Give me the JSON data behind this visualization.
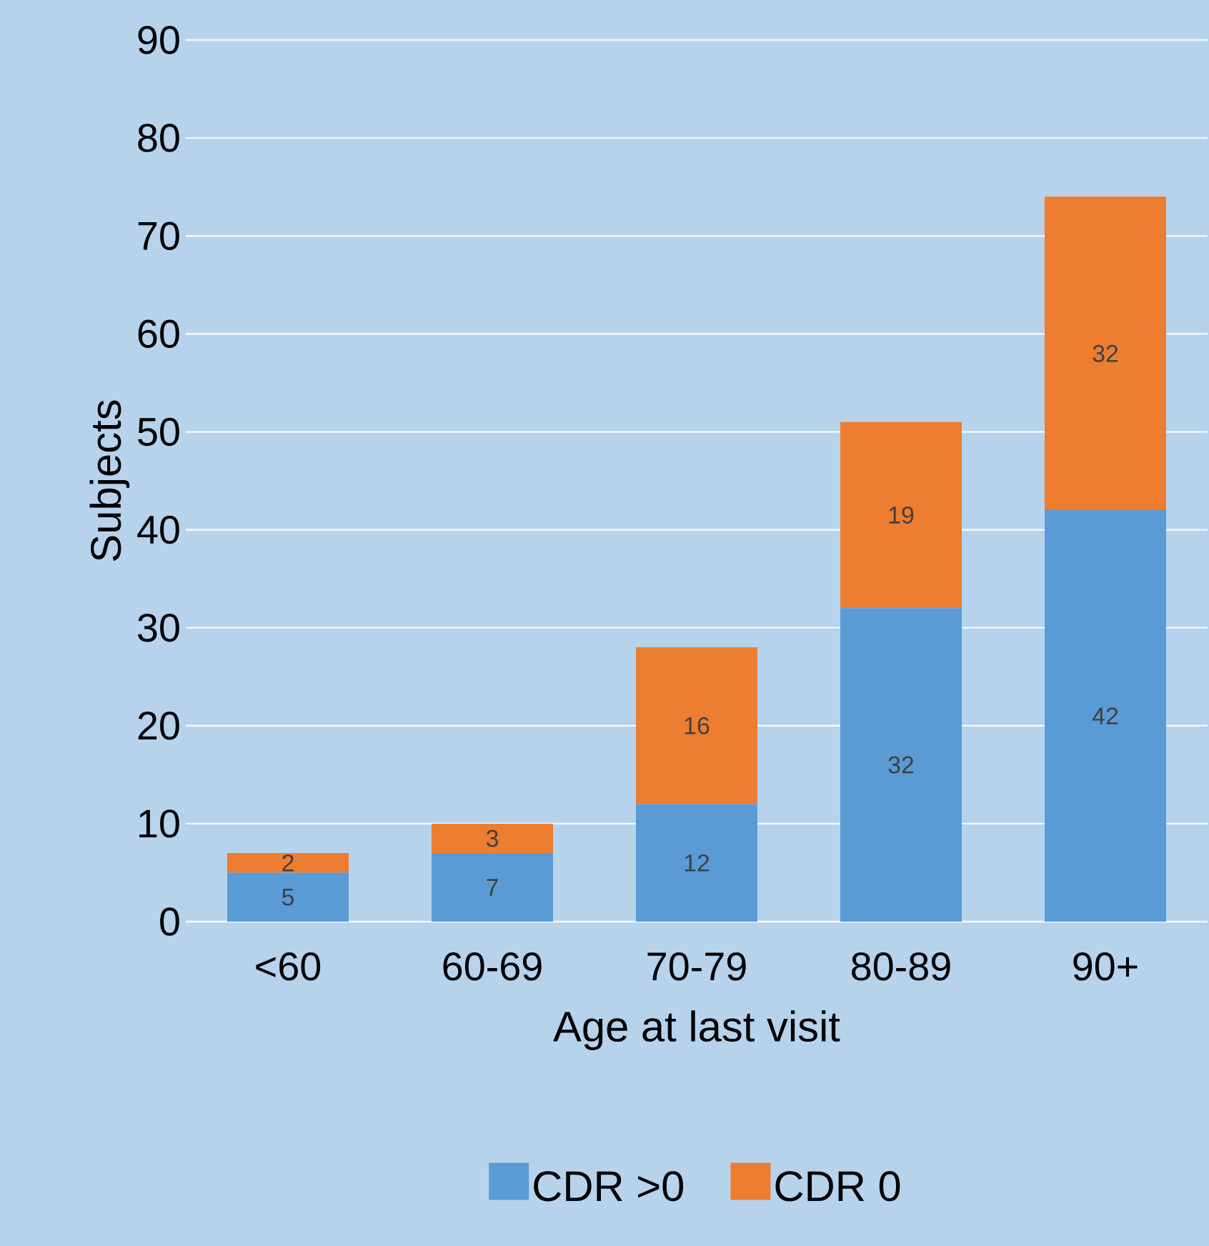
{
  "chart_data": {
    "type": "bar",
    "stacked": true,
    "xlabel": "Age at last visit",
    "ylabel": "Subjects",
    "categories": [
      "<60",
      "60-69",
      "70-79",
      "80-89",
      "90+"
    ],
    "series": [
      {
        "name": "CDR >0",
        "color": "#5b9bd5",
        "values": [
          5,
          7,
          12,
          32,
          42
        ]
      },
      {
        "name": "CDR 0",
        "color": "#ed7d31",
        "values": [
          2,
          3,
          16,
          19,
          32
        ]
      }
    ],
    "ylim": [
      0,
      90
    ],
    "yticks": [
      0,
      10,
      20,
      30,
      40,
      50,
      60,
      70,
      80,
      90
    ],
    "grid": "y",
    "legend": "bottom",
    "data_labels": true
  }
}
